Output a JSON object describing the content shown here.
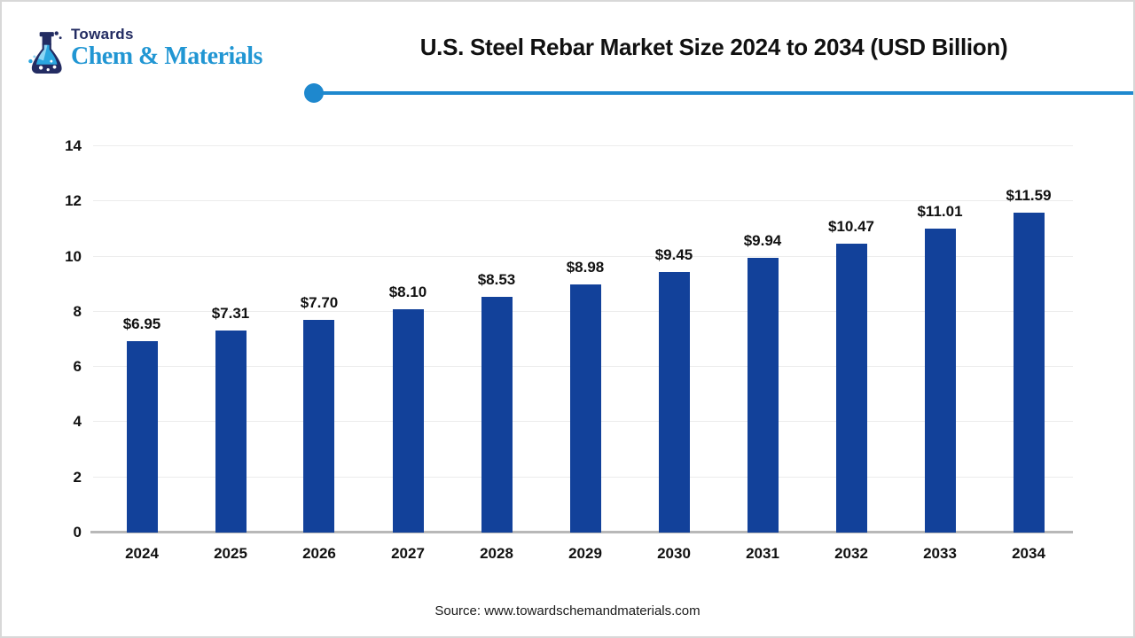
{
  "colors": {
    "brand_navy": "#232c62",
    "brand_blue": "#2196d3",
    "divider_blue": "#1e88ce",
    "bar_blue": "#12419a",
    "gridline": "#ececec",
    "axis_line": "#b8b8b8"
  },
  "header": {
    "logo": {
      "icon": "flask-icon",
      "brand_line1": "Towards",
      "brand_line2": "Chem & Materials"
    }
  },
  "chart_data": {
    "type": "bar",
    "title": "U.S. Steel Rebar Market Size 2024 to 2034 (USD Billion)",
    "categories": [
      "2024",
      "2025",
      "2026",
      "2027",
      "2028",
      "2029",
      "2030",
      "2031",
      "2032",
      "2033",
      "2034"
    ],
    "values": [
      6.95,
      7.31,
      7.7,
      8.1,
      8.53,
      8.98,
      9.45,
      9.94,
      10.47,
      11.01,
      11.59
    ],
    "data_labels": [
      "$6.95",
      "$7.31",
      "$7.70",
      "$8.10",
      "$8.53",
      "$8.98",
      "$9.45",
      "$9.94",
      "$10.47",
      "$11.01",
      "$11.59"
    ],
    "xlabel": "",
    "ylabel": "",
    "ylim": [
      0,
      14
    ],
    "yticks": [
      0,
      2,
      4,
      6,
      8,
      10,
      12,
      14
    ],
    "grid": true,
    "legend": false,
    "bar_color": "#12419a"
  },
  "footer": {
    "source": "Source: www.towardschemandmaterials.com"
  }
}
